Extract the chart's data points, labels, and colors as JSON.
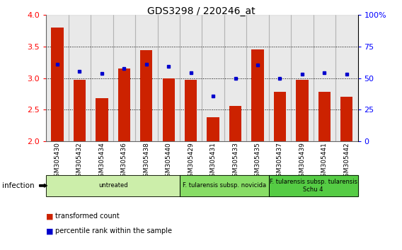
{
  "title": "GDS3298 / 220246_at",
  "samples": [
    "GSM305430",
    "GSM305432",
    "GSM305434",
    "GSM305436",
    "GSM305438",
    "GSM305440",
    "GSM305429",
    "GSM305431",
    "GSM305433",
    "GSM305435",
    "GSM305437",
    "GSM305439",
    "GSM305441",
    "GSM305442"
  ],
  "red_bars": [
    3.8,
    2.97,
    2.68,
    3.15,
    3.44,
    3.0,
    2.97,
    2.38,
    2.56,
    3.46,
    2.78,
    2.97,
    2.78,
    2.7
  ],
  "blue_dots": [
    3.22,
    3.11,
    3.07,
    3.15,
    3.22,
    3.19,
    3.09,
    2.72,
    3.0,
    3.21,
    3.0,
    3.06,
    3.08,
    3.06
  ],
  "ylim_left": [
    2.0,
    4.0
  ],
  "ylim_right": [
    0,
    100
  ],
  "yticks_left": [
    2.0,
    2.5,
    3.0,
    3.5,
    4.0
  ],
  "yticks_right": [
    0,
    25,
    50,
    75,
    100
  ],
  "bar_color": "#cc2200",
  "dot_color": "#0000cc",
  "groups": [
    {
      "label": "untreated",
      "start": 0,
      "end": 5,
      "color": "#cceeaa"
    },
    {
      "label": "F. tularensis subsp. novicida",
      "start": 6,
      "end": 9,
      "color": "#88dd66"
    },
    {
      "label": "F. tularensis subsp. tularensis\nSchu 4",
      "start": 10,
      "end": 13,
      "color": "#55cc44"
    }
  ],
  "infection_label": "infection",
  "legend_red": "transformed count",
  "legend_blue": "percentile rank within the sample",
  "bar_width": 0.55,
  "tick_label_fontsize": 6.5,
  "title_fontsize": 10
}
